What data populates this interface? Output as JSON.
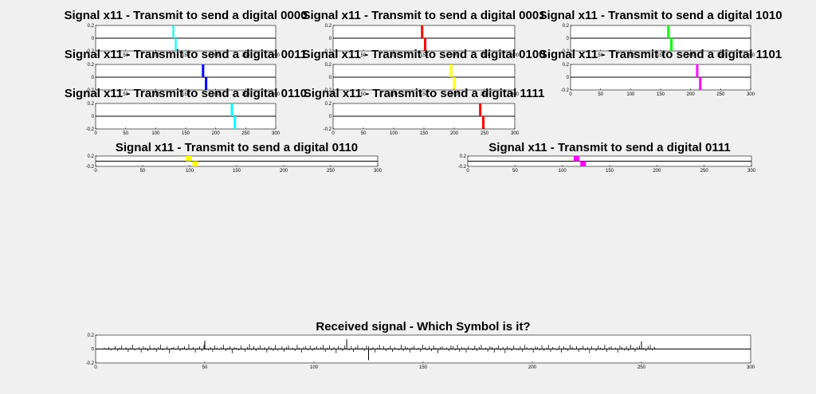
{
  "figure": {
    "background": "#f0f0f0",
    "axes_background": "#ffffff"
  },
  "chart_data": [
    {
      "type": "bar",
      "title": "Signal x11 - Transmit to send a digital 0000",
      "xlim": [
        0,
        300
      ],
      "ylim": [
        -0.2,
        0.2
      ],
      "xticks": [
        0,
        50,
        100,
        150,
        200,
        250,
        300
      ],
      "yticks": [
        -0.2,
        0,
        0.2
      ],
      "ytick_labels": [
        "-0.2",
        "0",
        "0.2"
      ],
      "color": "#00ffff",
      "pulses": [
        {
          "x_start": 128,
          "x_end": 131,
          "value": 0.2
        },
        {
          "x_start": 132,
          "x_end": 135,
          "value": -0.2
        }
      ]
    },
    {
      "type": "bar",
      "title": "Signal x11 - Transmit to send a digital 0001",
      "xlim": [
        0,
        300
      ],
      "ylim": [
        -0.2,
        0.2
      ],
      "xticks": [
        0,
        50,
        100,
        150,
        200,
        250,
        300
      ],
      "yticks": [
        -0.2,
        0,
        0.2
      ],
      "ytick_labels": [
        "-0.2",
        "0",
        "0.2"
      ],
      "color": "#ff0000",
      "pulses": [
        {
          "x_start": 145,
          "x_end": 149,
          "value": 0.2
        },
        {
          "x_start": 150,
          "x_end": 154,
          "value": -0.2
        }
      ]
    },
    {
      "type": "bar",
      "title": "Signal x11 - Transmit to send a digital 1010",
      "xlim": [
        0,
        300
      ],
      "ylim": [
        -0.2,
        0.2
      ],
      "xticks": [
        0,
        50,
        100,
        150,
        200,
        250,
        300
      ],
      "yticks": [
        -0.2,
        0,
        0.2
      ],
      "ytick_labels": [
        "-0.2",
        "0",
        "0.2"
      ],
      "color": "#00ff00",
      "pulses": [
        {
          "x_start": 161,
          "x_end": 165,
          "value": 0.2
        },
        {
          "x_start": 166,
          "x_end": 170,
          "value": -0.2
        }
      ]
    },
    {
      "type": "bar",
      "title": "Signal x11 - Transmit to send a digital 0011",
      "xlim": [
        0,
        300
      ],
      "ylim": [
        -0.2,
        0.2
      ],
      "xticks": [
        0,
        50,
        100,
        150,
        200,
        250,
        300
      ],
      "yticks": [
        -0.2,
        0,
        0.2
      ],
      "ytick_labels": [
        "-0.2",
        "0",
        "0.2"
      ],
      "color": "#0000ff",
      "pulses": [
        {
          "x_start": 177,
          "x_end": 181,
          "value": 0.2
        },
        {
          "x_start": 182,
          "x_end": 186,
          "value": -0.2
        }
      ]
    },
    {
      "type": "bar",
      "title": "Signal x11 - Transmit to send a digital 0100",
      "xlim": [
        0,
        300
      ],
      "ylim": [
        -0.2,
        0.2
      ],
      "xticks": [
        0,
        50,
        100,
        150,
        200,
        250,
        300
      ],
      "yticks": [
        -0.2,
        0,
        0.2
      ],
      "ytick_labels": [
        "-0.2",
        "0",
        "0.2"
      ],
      "color": "#ffff00",
      "pulses": [
        {
          "x_start": 193,
          "x_end": 197,
          "value": 0.2
        },
        {
          "x_start": 198,
          "x_end": 202,
          "value": -0.2
        }
      ]
    },
    {
      "type": "bar",
      "title": "Signal x11 - Transmit to send a digital 1101",
      "xlim": [
        0,
        300
      ],
      "ylim": [
        -0.2,
        0.2
      ],
      "xticks": [
        0,
        50,
        100,
        150,
        200,
        250,
        300
      ],
      "yticks": [
        -0.2,
        0,
        0.2
      ],
      "ytick_labels": [
        "-0.2",
        "0",
        "0.2"
      ],
      "color": "#ff00ff",
      "pulses": [
        {
          "x_start": 209,
          "x_end": 213,
          "value": 0.2
        },
        {
          "x_start": 214,
          "x_end": 218,
          "value": -0.2
        }
      ]
    },
    {
      "type": "bar",
      "title": "Signal x11 - Transmit to send a digital 0110",
      "xlim": [
        0,
        300
      ],
      "ylim": [
        -0.2,
        0.2
      ],
      "xticks": [
        0,
        50,
        100,
        150,
        200,
        250,
        300
      ],
      "yticks": [
        -0.2,
        0,
        0.2
      ],
      "ytick_labels": [
        "-0.2",
        "0",
        "0.2"
      ],
      "color": "#00ffff",
      "pulses": [
        {
          "x_start": 225,
          "x_end": 229,
          "value": 0.2
        },
        {
          "x_start": 230,
          "x_end": 234,
          "value": -0.2
        }
      ]
    },
    {
      "type": "bar",
      "title": "Signal x11 - Transmit to send a digital 1111",
      "xlim": [
        0,
        300
      ],
      "ylim": [
        -0.2,
        0.2
      ],
      "xticks": [
        0,
        50,
        100,
        150,
        200,
        250,
        300
      ],
      "yticks": [
        -0.2,
        0,
        0.2
      ],
      "ytick_labels": [
        "-0.2",
        "0",
        "0.2"
      ],
      "color": "#ff0000",
      "pulses": [
        {
          "x_start": 241,
          "x_end": 245,
          "value": 0.2
        },
        {
          "x_start": 246,
          "x_end": 250,
          "value": -0.2
        }
      ]
    },
    {
      "type": "bar",
      "title": "Signal x11 - Transmit to send a digital 0110",
      "xlim": [
        0,
        300
      ],
      "ylim": [
        -0.2,
        0.2
      ],
      "xticks": [
        0,
        50,
        100,
        150,
        200,
        250,
        300
      ],
      "yticks": [
        -0.2,
        0.2
      ],
      "ytick_labels": [
        "-0.2",
        "0.2"
      ],
      "color": "#ffff00",
      "pulses": [
        {
          "x_start": 96,
          "x_end": 102,
          "value": 0.2
        },
        {
          "x_start": 103,
          "x_end": 109,
          "value": -0.2
        }
      ]
    },
    {
      "type": "bar",
      "title": "Signal x11 - Transmit to send a digital 0111",
      "xlim": [
        0,
        300
      ],
      "ylim": [
        -0.2,
        0.2
      ],
      "xticks": [
        0,
        50,
        100,
        150,
        200,
        250,
        300
      ],
      "yticks": [
        -0.2,
        0.2
      ],
      "ytick_labels": [
        "-0.2",
        "0.2"
      ],
      "color": "#ff00ff",
      "pulses": [
        {
          "x_start": 112,
          "x_end": 118,
          "value": 0.2
        },
        {
          "x_start": 119,
          "x_end": 125,
          "value": -0.2
        }
      ]
    },
    {
      "type": "stem",
      "title": "Received signal - Which Symbol is it?",
      "xlim": [
        0,
        300
      ],
      "ylim": [
        -0.2,
        0.2
      ],
      "xticks": [
        0,
        50,
        100,
        150,
        200,
        250,
        300
      ],
      "yticks": [
        -0.2,
        0,
        0.2
      ],
      "ytick_labels": [
        "-0.2",
        "0",
        "0.2"
      ],
      "color": "#000000",
      "x_range": [
        4,
        256
      ],
      "values": [
        0.02,
        -0.01,
        0.03,
        -0.02,
        0.01,
        0.04,
        -0.03,
        0.02,
        0.05,
        -0.01,
        0.03,
        -0.04,
        0.02,
        0.06,
        -0.02,
        0.01,
        0.03,
        -0.05,
        0.04,
        0.02,
        -0.03,
        0.05,
        -0.01,
        0.02,
        -0.04,
        0.03,
        0.06,
        -0.02,
        0.01,
        0.04,
        -0.06,
        0.02,
        0.03,
        -0.01,
        0.05,
        -0.03,
        0.02,
        0.04,
        -0.02,
        0.07,
        -0.01,
        0.03,
        -0.05,
        0.02,
        0.04,
        -0.03,
        0.06,
        0.01,
        -0.02,
        0.03,
        -0.04,
        0.05,
        0.02,
        -0.01,
        0.03,
        0.06,
        -0.03,
        0.02,
        0.04,
        -0.06,
        0.03,
        0.02,
        -0.02,
        0.05,
        0.01,
        -0.04,
        0.03,
        0.07,
        -0.02,
        0.04,
        -0.03,
        0.02,
        0.05,
        -0.01,
        0.03,
        -0.05,
        0.04,
        0.02,
        -0.03,
        0.06,
        -0.02,
        0.01,
        0.04,
        -0.04,
        0.03,
        0.05,
        -0.01,
        0.02,
        -0.03,
        0.06,
        0.02,
        -0.05,
        0.03,
        0.04,
        -0.02,
        0.05,
        -0.03,
        0.02,
        0.04,
        -0.01,
        0.03,
        0.06,
        -0.04,
        0.02,
        0.05,
        -0.02,
        0.03,
        -0.06,
        0.04,
        0.02,
        -0.03,
        0.05,
        0.01,
        -0.02,
        0.04,
        -0.04,
        0.03,
        0.06,
        -0.01,
        0.02,
        -0.03,
        0.05,
        0.04,
        -0.02,
        0.03,
        -0.05,
        0.02,
        0.06,
        -0.01,
        0.04,
        -0.03,
        0.02,
        0.05,
        -0.04,
        0.03,
        0.01,
        -0.02,
        0.06,
        -0.03,
        0.04,
        0.02,
        -0.05,
        0.03,
        0.05,
        -0.01,
        0.02,
        -0.04,
        0.06,
        0.03,
        -0.02,
        0.04,
        -0.03,
        0.05,
        0.02,
        -0.06,
        0.03,
        0.04,
        -0.01,
        0.02,
        -0.03,
        0.05,
        0.04,
        -0.02,
        0.06,
        -0.04,
        0.03,
        0.02,
        -0.05,
        0.04,
        0.01,
        -0.02,
        0.05,
        -0.03,
        0.03,
        0.06,
        -0.01,
        0.02,
        -0.04,
        0.04,
        0.03,
        -0.05,
        0.02,
        0.05,
        -0.02,
        0.03,
        -0.06,
        0.04,
        0.02,
        -0.03,
        0.05,
        0.01,
        -0.02,
        0.04,
        -0.04,
        0.06,
        0.03,
        -0.01,
        0.02,
        -0.05,
        0.04,
        0.03,
        -0.02,
        0.05,
        -0.03,
        0.02,
        0.06,
        -0.04,
        0.03,
        0.01,
        -0.02,
        0.05,
        -0.05,
        0.04,
        0.02,
        -0.03,
        0.06,
        0.03,
        -0.01,
        0.04,
        -0.04,
        0.02,
        0.05,
        -0.02,
        0.03,
        -0.06,
        0.04,
        0.01,
        -0.03,
        0.05,
        0.02,
        -0.02,
        0.06,
        -0.04,
        0.03,
        0.04,
        -0.01,
        0.02,
        -0.05,
        0.05,
        0.03,
        -0.02,
        0.04,
        -0.03,
        0.06,
        0.02,
        -0.04,
        0.03,
        0.05,
        -0.01,
        0.02,
        -0.03,
        0.04,
        0.06,
        -0.02,
        0.03
      ],
      "spikes": [
        {
          "x": 50,
          "value": 0.12
        },
        {
          "x": 115,
          "value": 0.14
        },
        {
          "x": 125,
          "value": -0.16
        },
        {
          "x": 250,
          "value": 0.11
        }
      ]
    }
  ]
}
